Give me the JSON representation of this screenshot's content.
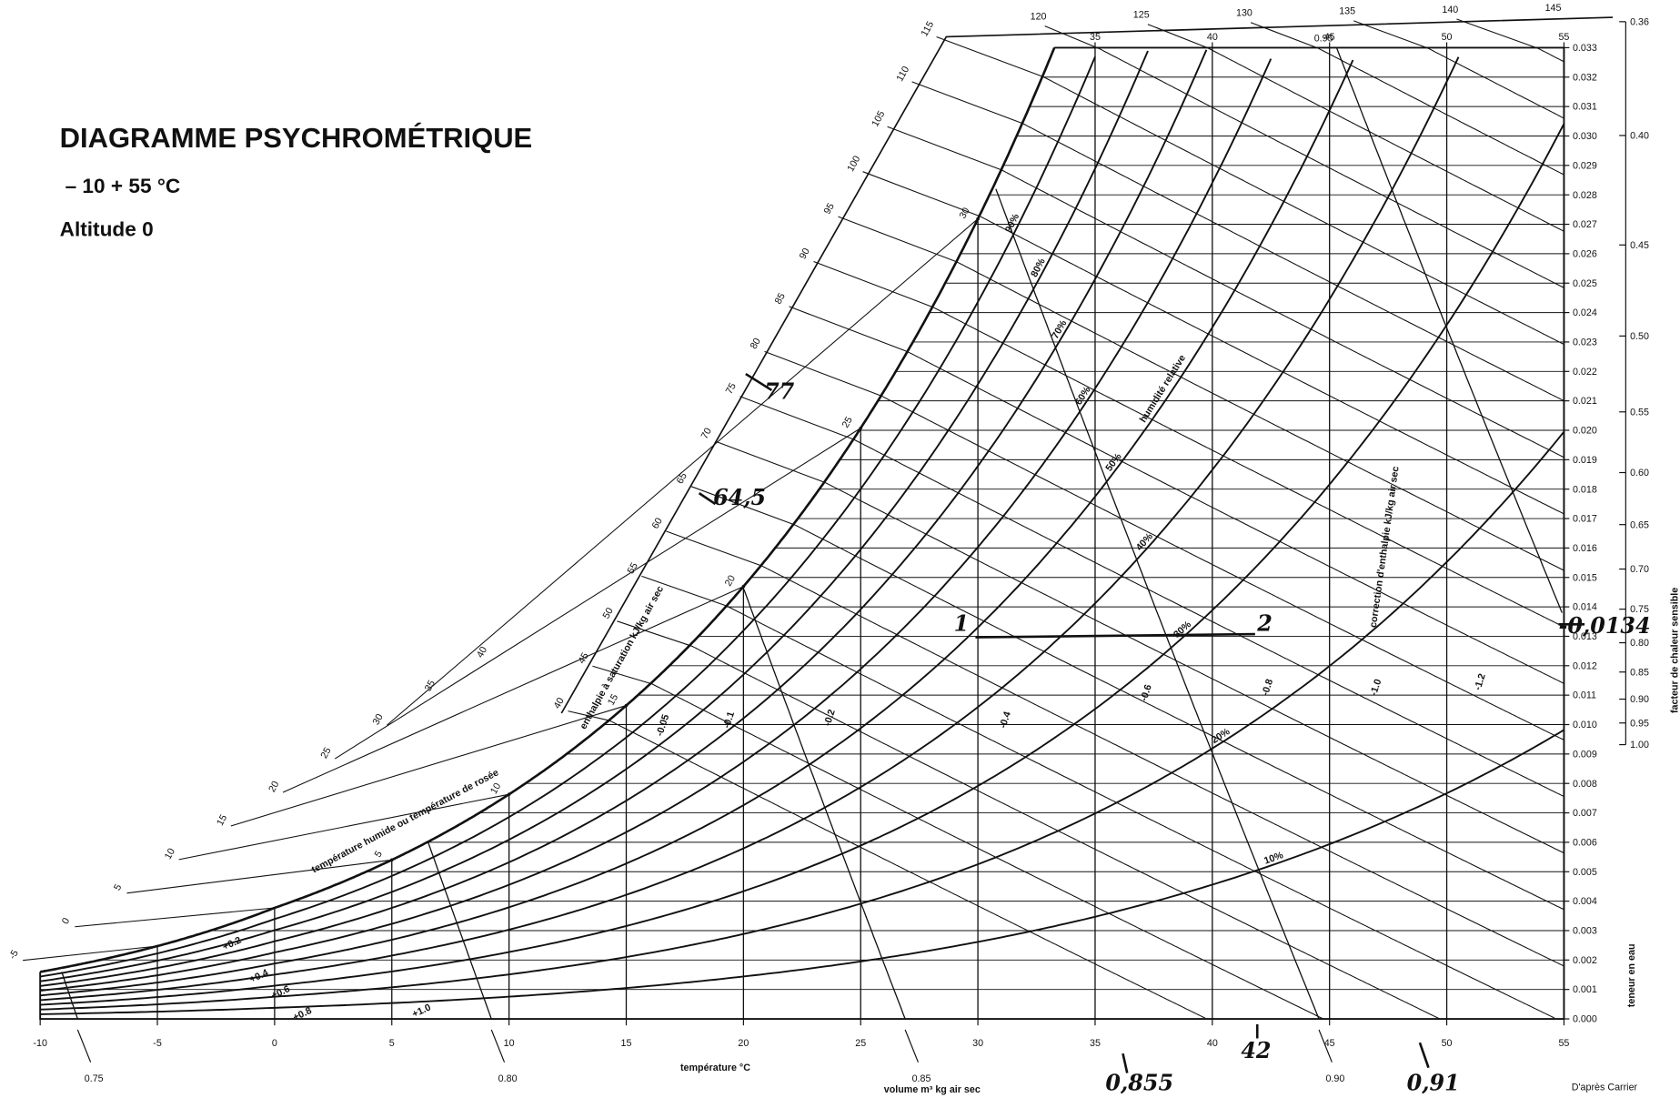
{
  "title": "DIAGRAMME PSYCHROMÉTRIQUE",
  "subtitle": "– 10  + 55 °C",
  "altitude": "Altitude 0",
  "credit": "D'après Carrier",
  "chart_data": {
    "type": "psychrometric",
    "xlabel": "température °C",
    "ylabel": "teneur en eau",
    "xlim": [
      -10,
      55
    ],
    "ylim": [
      0,
      0.033
    ],
    "xticks": [
      -10,
      -5,
      0,
      5,
      10,
      15,
      20,
      25,
      30,
      35,
      40,
      45,
      50,
      55
    ],
    "yticks": [
      {
        "value": 0,
        "label": "0.000"
      },
      0.001,
      0.002,
      0.003,
      0.004,
      0.005,
      0.006,
      0.007,
      0.008,
      0.009,
      {
        "value": 0.01,
        "label": "0.010"
      },
      0.011,
      0.012,
      0.013,
      0.014,
      0.015,
      0.016,
      0.017,
      0.018,
      0.019,
      {
        "value": 0.02,
        "label": "0.020"
      },
      0.021,
      0.022,
      0.023,
      0.024,
      0.025,
      0.026,
      0.027,
      0.028,
      0.029,
      {
        "value": 0.03,
        "label": "0.030"
      },
      0.031,
      0.032,
      0.033
    ],
    "grid": true,
    "top_temperature_labels": [
      35,
      40,
      45,
      50,
      55
    ],
    "rh_label": "humidité relative",
    "relative_humidity": [
      {
        "value": 10,
        "label": "10%"
      },
      {
        "value": 20,
        "label": "20%"
      },
      {
        "value": 30,
        "label": "30%"
      },
      {
        "value": 40,
        "label": "40%"
      },
      {
        "value": 50,
        "label": "50%"
      },
      {
        "value": 60,
        "label": "60%"
      },
      {
        "value": 70,
        "label": "70%"
      },
      {
        "value": 80,
        "label": "80%"
      },
      {
        "value": 90,
        "label": "90%"
      }
    ],
    "saturation_temperatures": [
      5,
      10,
      15,
      20,
      25,
      30
    ],
    "wet_bulb_label": "température humide ou température de rosée",
    "wet_bulb_temperatures": [
      -5,
      0,
      5,
      10,
      15,
      20,
      25,
      30,
      35,
      40
    ],
    "enthalpy_label": "enthalpie à saturation kJ/kg air sec",
    "enthalpy": [
      40,
      45,
      50,
      55,
      60,
      65,
      70,
      75,
      80,
      85,
      90,
      95,
      100,
      105,
      110,
      115,
      120,
      125,
      130,
      135,
      140,
      145
    ],
    "volume_label": "volume m³ kg air sec",
    "volume": [
      {
        "value": 0.75,
        "label": "0.75"
      },
      {
        "value": 0.8,
        "label": "0.80"
      },
      {
        "value": 0.85,
        "label": "0.85"
      },
      {
        "value": 0.9,
        "label": "0.90"
      },
      {
        "value": 0.95,
        "label": "0.95"
      }
    ],
    "correction_label": "correction d'enthalpie kJ/kg air sec",
    "corrections": [
      -0.05,
      -0.1,
      -0.2,
      -0.4,
      -0.6,
      -0.8,
      {
        "value": -1,
        "label": "-1.0"
      },
      -1.2,
      {
        "value": 0.2,
        "label": "+0.2"
      },
      {
        "value": 0.4,
        "label": "+0.4"
      },
      {
        "value": 0.6,
        "label": "+0.6"
      },
      {
        "value": 0.8,
        "label": "+0.8"
      },
      {
        "value": 1,
        "label": "+1.0"
      }
    ],
    "sensible_heat_factor_label": "facteur de chaleur sensible",
    "sensible_heat_factor": [
      {
        "value": 0.36,
        "label": "0.36"
      },
      {
        "value": 0.4,
        "label": "0.40"
      },
      {
        "value": 0.45,
        "label": "0.45"
      },
      {
        "value": 0.5,
        "label": "0.50"
      },
      {
        "value": 0.55,
        "label": "0.55"
      },
      {
        "value": 0.6,
        "label": "0.60"
      },
      {
        "value": 0.65,
        "label": "0.65"
      },
      {
        "value": 0.7,
        "label": "0.70"
      },
      {
        "value": 0.75,
        "label": "0.75"
      },
      {
        "value": 0.8,
        "label": "0.80"
      },
      {
        "value": 0.85,
        "label": "0.85"
      },
      {
        "value": 0.9,
        "label": "0.90"
      },
      {
        "value": 0.95,
        "label": "0.95"
      },
      {
        "value": 1,
        "label": "1.00"
      }
    ],
    "annotations": [
      "77",
      "64,5",
      "1",
      "2",
      "0,855",
      "42",
      "0,91",
      "-0,0134"
    ]
  }
}
